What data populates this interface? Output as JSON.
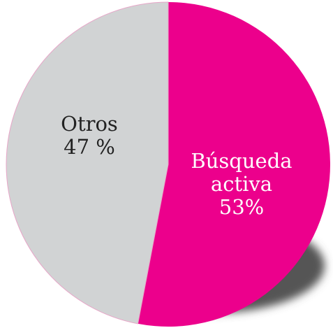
{
  "chart_data": {
    "type": "pie",
    "categories": [
      "Búsqueda activa",
      "Otros"
    ],
    "values": [
      53,
      47
    ],
    "value_labels": [
      "53%",
      "47 %"
    ],
    "colors": [
      "#ec008c",
      "#d1d3d4"
    ]
  }
}
